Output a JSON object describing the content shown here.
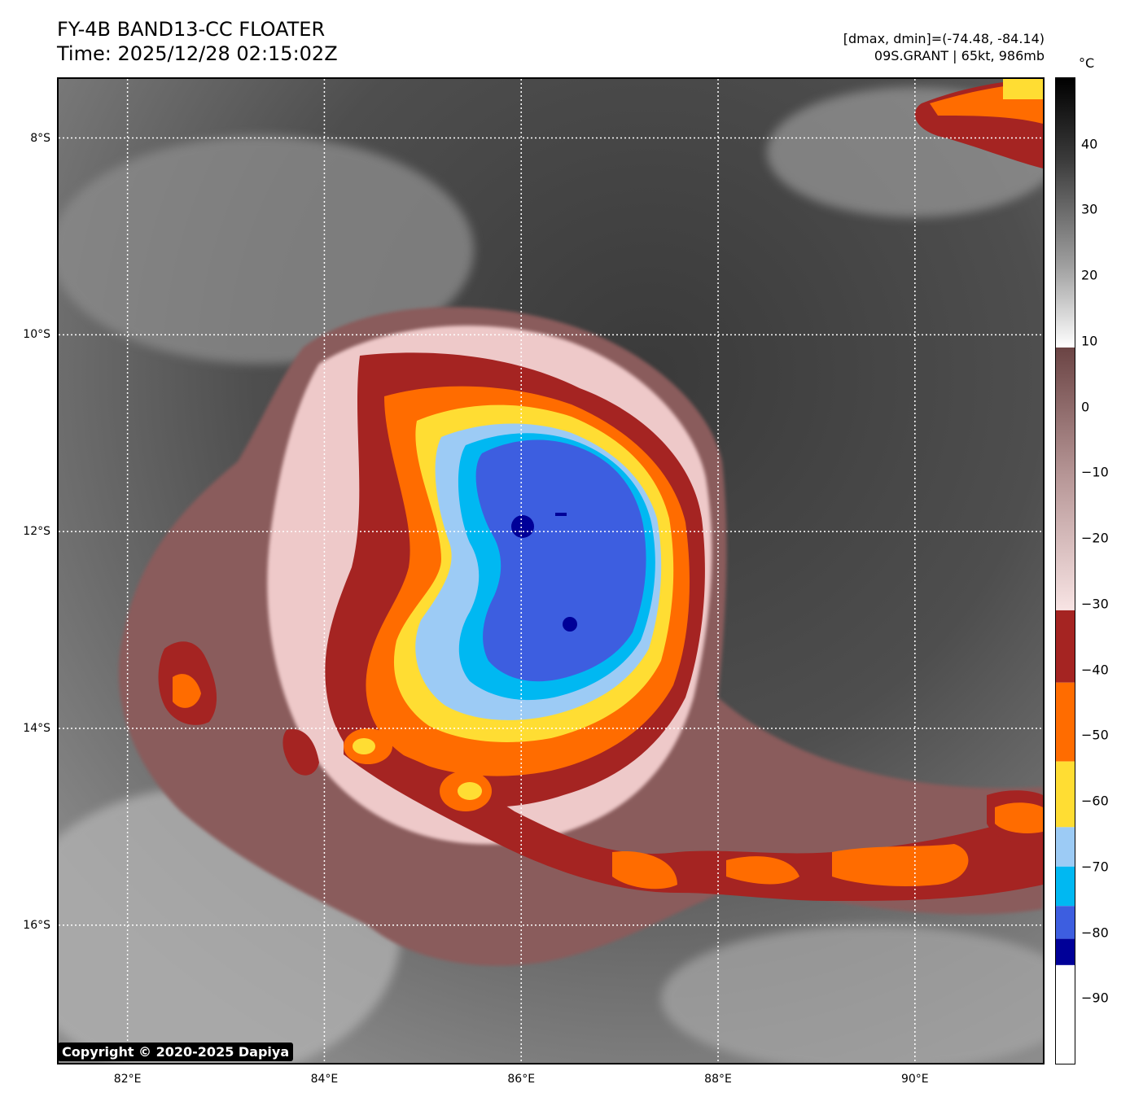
{
  "header": {
    "title_line1": "FY-4B BAND13-CC FLOATER",
    "title_line2": "Time: 2025/12/28 02:15:02Z",
    "range_text": "[dmax, dmin]=(-74.48, -84.14)",
    "storm_text": "09S.GRANT | 65kt, 986mb"
  },
  "map": {
    "lat_labels": [
      "8°S",
      "10°S",
      "12°S",
      "14°S",
      "16°S"
    ],
    "lon_labels": [
      "82°E",
      "84°E",
      "86°E",
      "88°E",
      "90°E"
    ],
    "lat_values": [
      -8,
      -10,
      -12,
      -14,
      -16
    ],
    "lon_values": [
      82,
      84,
      86,
      88,
      90
    ],
    "lat_range": [
      -17.4,
      -7.4
    ],
    "lon_range": [
      81.3,
      91.3
    ],
    "storm_center": {
      "lat": -12.0,
      "lon": 86.0
    },
    "copyright": "Copyright © 2020-2025 Dapiya"
  },
  "colorbar": {
    "unit": "°C",
    "range": [
      -100,
      50
    ],
    "tick_labels": [
      "40",
      "30",
      "20",
      "10",
      "0",
      "−10",
      "−20",
      "−30",
      "−40",
      "−50",
      "−60",
      "−70",
      "−80",
      "−90"
    ],
    "tick_values": [
      40,
      30,
      20,
      10,
      0,
      -10,
      -20,
      -30,
      -40,
      -50,
      -60,
      -70,
      -80,
      -90
    ],
    "colors": {
      "dark_red": "#a52422",
      "orange": "#ff6c00",
      "yellow": "#ffdd33",
      "light_blue": "#9ccbf5",
      "cyan": "#00b8f2",
      "royal_blue": "#3d5ee0",
      "navy": "#000098",
      "pink_light": "#f2d4d4",
      "mauve": "#8a5c5c"
    }
  }
}
